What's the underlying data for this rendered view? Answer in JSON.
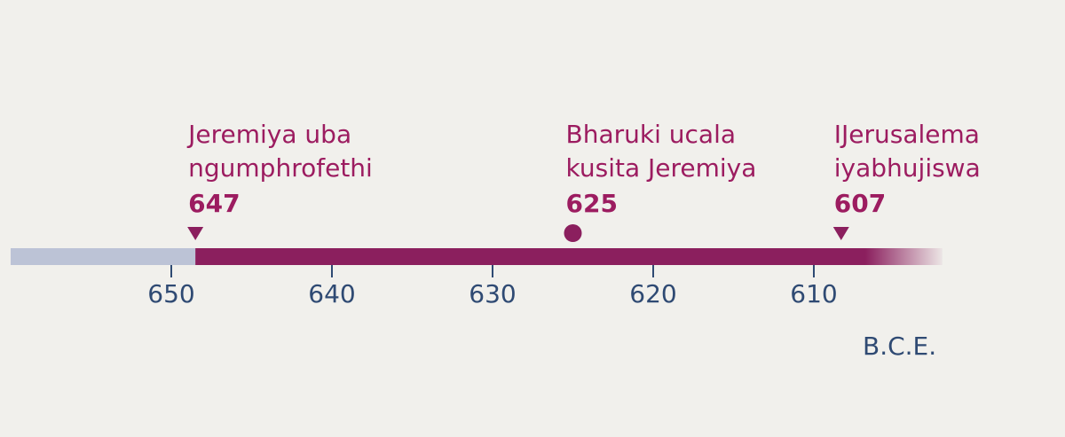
{
  "timeline": {
    "ticks": [
      650,
      640,
      630,
      620,
      610
    ],
    "range": [
      658.5,
      600.5
    ],
    "preceding_range": [
      660,
      648.5
    ],
    "active_range": [
      648.5,
      602
    ],
    "era_label": "B.C.E.",
    "colors": {
      "preceding_bar": "#bcc3d6",
      "active_bar": "#8b1f5e",
      "label_text": "#9c1c60",
      "tick_text": "#2f4a73"
    },
    "events": [
      {
        "lines": [
          "Jeremiya uba",
          "ngumphrofethi"
        ],
        "year_label": "647",
        "year": 648.5,
        "marker": "triangle"
      },
      {
        "lines": [
          "Bharuki ucala",
          "kusita Jeremiya"
        ],
        "year_label": "625",
        "year": 625,
        "marker": "circle"
      },
      {
        "lines": [
          "IJerusalema",
          "iyabhujiswa"
        ],
        "year_label": "607",
        "year": 608.3,
        "marker": "triangle"
      }
    ]
  }
}
